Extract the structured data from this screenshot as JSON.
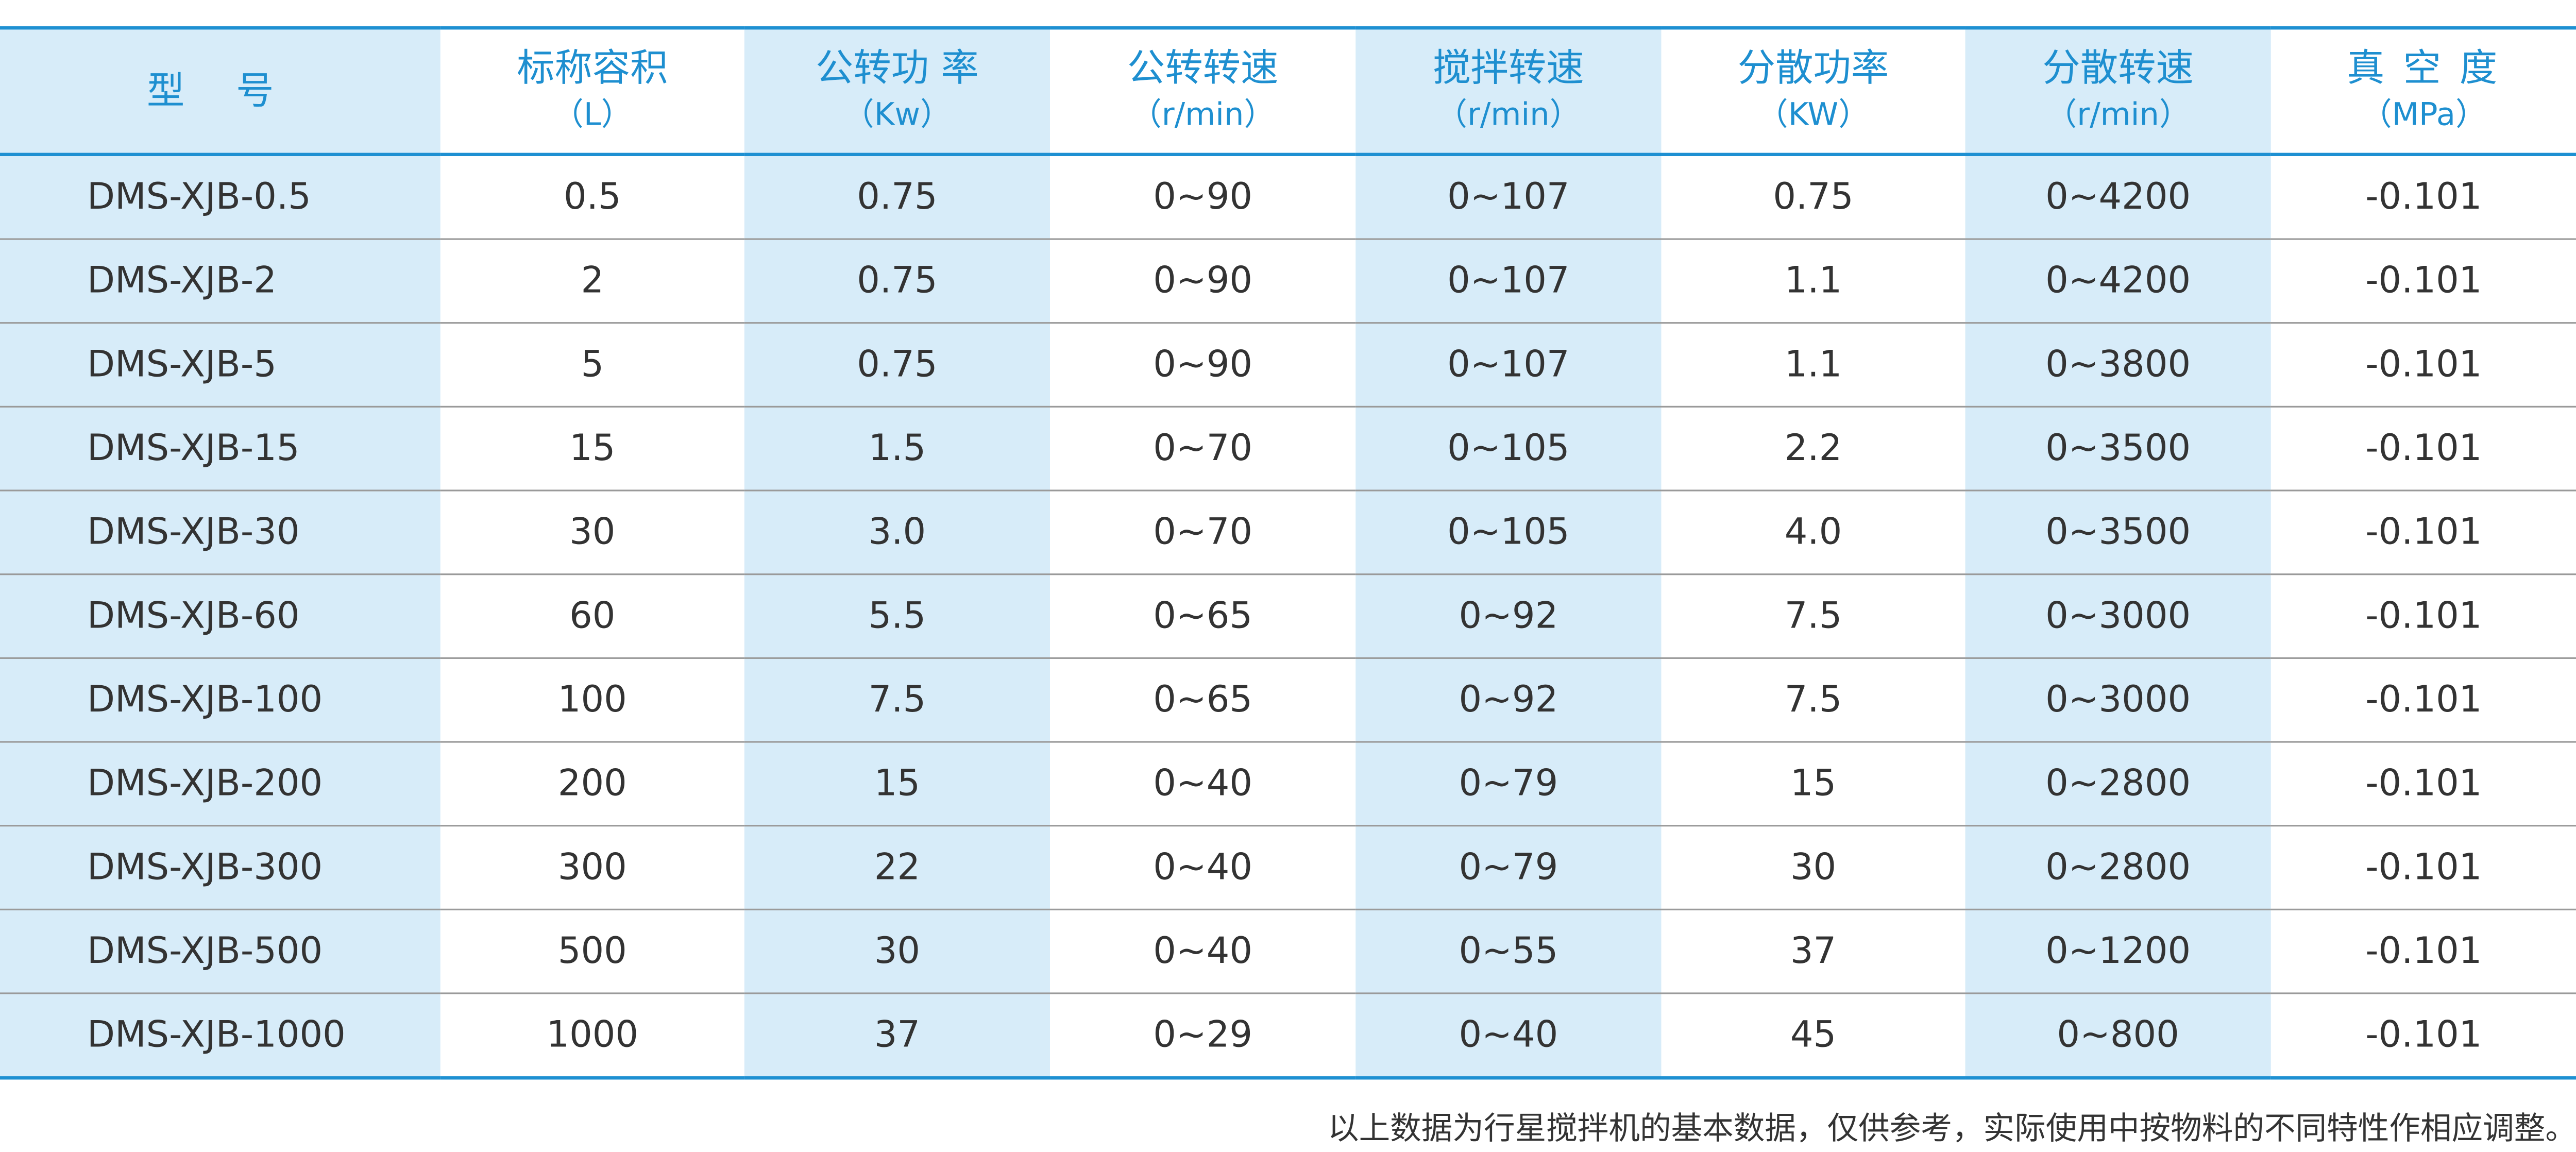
{
  "table": {
    "header": [
      {
        "name": "型 号"
      },
      {
        "name": "标称容积",
        "unit": "（L）"
      },
      {
        "name": "公转功 率",
        "unit": "（Kw）"
      },
      {
        "name": "公转转速",
        "unit": "（r/min）"
      },
      {
        "name": "搅拌转速",
        "unit": "（r/min）"
      },
      {
        "name": "分散功率",
        "unit": "（KW）"
      },
      {
        "name": "分散转速",
        "unit": "（r/min）"
      },
      {
        "name": "真 空 度",
        "unit": "（MPa）"
      }
    ],
    "rows": [
      [
        "DMS-XJB-0.5",
        "0.5",
        "0.75",
        "0~90",
        "0~107",
        "0.75",
        "0~4200",
        "-0.101"
      ],
      [
        "DMS-XJB-2",
        "2",
        "0.75",
        "0~90",
        "0~107",
        "1.1",
        "0~4200",
        "-0.101"
      ],
      [
        "DMS-XJB-5",
        "5",
        "0.75",
        "0~90",
        "0~107",
        "1.1",
        "0~3800",
        "-0.101"
      ],
      [
        "DMS-XJB-15",
        "15",
        "1.5",
        "0~70",
        "0~105",
        "2.2",
        "0~3500",
        "-0.101"
      ],
      [
        "DMS-XJB-30",
        "30",
        "3.0",
        "0~70",
        "0~105",
        "4.0",
        "0~3500",
        "-0.101"
      ],
      [
        "DMS-XJB-60",
        "60",
        "5.5",
        "0~65",
        "0~92",
        "7.5",
        "0~3000",
        "-0.101"
      ],
      [
        "DMS-XJB-100",
        "100",
        "7.5",
        "0~65",
        "0~92",
        "7.5",
        "0~3000",
        "-0.101"
      ],
      [
        "DMS-XJB-200",
        "200",
        "15",
        "0~40",
        "0~79",
        "15",
        "0~2800",
        "-0.101"
      ],
      [
        "DMS-XJB-300",
        "300",
        "22",
        "0~40",
        "0~79",
        "30",
        "0~2800",
        "-0.101"
      ],
      [
        "DMS-XJB-500",
        "500",
        "30",
        "0~40",
        "0~55",
        "37",
        "0~1200",
        "-0.101"
      ],
      [
        "DMS-XJB-1000",
        "1000",
        "37",
        "0~29",
        "0~40",
        "45",
        "0~800",
        "-0.101"
      ]
    ],
    "footnote": "以上数据为行星搅拌机的基本数据，仅供参考，实际使用中按物料的不同特性作相应调整。"
  }
}
